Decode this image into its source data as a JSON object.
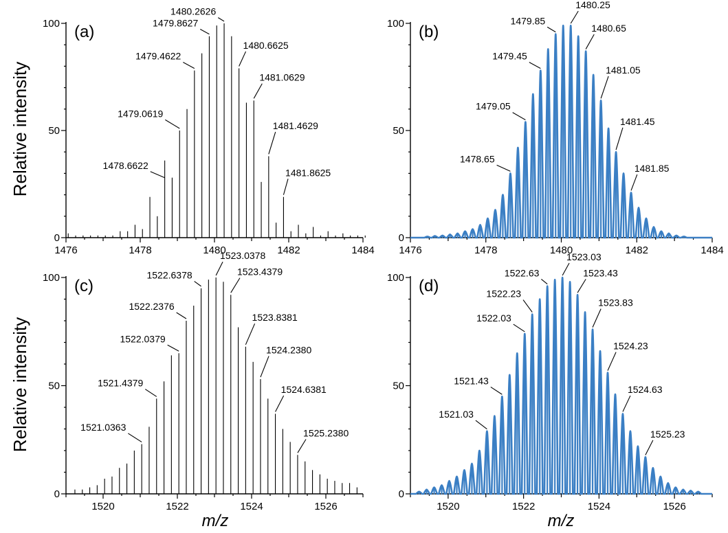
{
  "figure": {
    "ylabel": "Relative intensity",
    "xlabel": "m/z"
  },
  "chart_data": [
    {
      "id": "a",
      "type": "bar",
      "panel_label": "(a)",
      "style": "experimental",
      "color": "#000000",
      "xlim": [
        1476,
        1484
      ],
      "ylim": [
        0,
        100
      ],
      "xticks": [
        "1476",
        "1478",
        "1480",
        "1482",
        "1484"
      ],
      "yticks": [
        "0",
        "50",
        "100"
      ],
      "peaks": {
        "x": [
          1476.06,
          1476.46,
          1476.86,
          1477.26,
          1477.66,
          1478.06,
          1478.46,
          1478.86,
          1479.26,
          1479.66,
          1480.06,
          1480.46,
          1480.86,
          1481.26,
          1481.66,
          1482.06,
          1482.46,
          1482.86,
          1483.26,
          1483.66,
          1484.06,
          1476.26,
          1476.66,
          1477.06,
          1477.46,
          1477.86,
          1478.26,
          1478.66,
          1479.06,
          1479.46,
          1479.86,
          1480.26,
          1480.66,
          1481.06,
          1481.46,
          1481.86,
          1482.26,
          1482.66,
          1483.06,
          1483.46,
          1483.86
        ],
        "y": [
          2,
          1,
          1,
          1,
          3,
          4,
          10,
          28,
          60,
          86,
          99,
          94,
          63,
          26,
          7,
          3,
          2,
          1,
          1,
          1,
          1,
          1,
          1,
          1,
          3,
          6,
          19,
          36,
          50,
          78,
          94,
          100,
          79,
          64,
          38,
          19,
          6,
          5,
          3,
          2,
          1
        ]
      },
      "annotations": [
        {
          "text": "1478.6622",
          "x": 1478.66,
          "y": 27
        },
        {
          "text": "1479.0619",
          "x": 1479.06,
          "y": 50
        },
        {
          "text": "1479.4622",
          "x": 1479.46,
          "y": 78
        },
        {
          "text": "1479.8627",
          "x": 1479.86,
          "y": 94
        },
        {
          "text": "1480.2626",
          "x": 1480.26,
          "y": 100
        },
        {
          "text": "1480.6625",
          "x": 1480.66,
          "y": 79
        },
        {
          "text": "1481.0629",
          "x": 1481.06,
          "y": 64
        },
        {
          "text": "1481.4629",
          "x": 1481.46,
          "y": 38
        },
        {
          "text": "1481.8625",
          "x": 1481.86,
          "y": 19
        }
      ]
    },
    {
      "id": "b",
      "type": "line",
      "panel_label": "(b)",
      "style": "simulated",
      "color": "#3b7fc4",
      "xlim": [
        1476,
        1484
      ],
      "ylim": [
        0,
        100
      ],
      "xticks": [
        "1476",
        "1478",
        "1480",
        "1482",
        "1484"
      ],
      "yticks": [
        "0",
        "50",
        "100"
      ],
      "peaks": {
        "x": [
          1476.45,
          1476.65,
          1476.85,
          1477.05,
          1477.25,
          1477.45,
          1477.65,
          1477.85,
          1478.05,
          1478.25,
          1478.45,
          1478.65,
          1478.85,
          1479.05,
          1479.25,
          1479.45,
          1479.65,
          1479.85,
          1480.05,
          1480.25,
          1480.45,
          1480.65,
          1480.85,
          1481.05,
          1481.25,
          1481.45,
          1481.65,
          1481.85,
          1482.05,
          1482.25,
          1482.45,
          1482.65,
          1482.85,
          1483.05,
          1483.25
        ],
        "y": [
          0.5,
          0.8,
          1,
          1.5,
          2,
          3,
          4,
          6,
          9,
          13,
          20,
          30,
          42,
          54,
          67,
          78,
          88,
          95,
          99,
          99,
          94,
          87,
          76,
          64,
          51,
          40,
          30,
          21,
          14,
          9,
          5,
          3,
          2,
          1,
          0.5
        ]
      },
      "annotations": [
        {
          "text": "1478.65",
          "x": 1478.65,
          "y": 30
        },
        {
          "text": "1479.05",
          "x": 1479.05,
          "y": 54
        },
        {
          "text": "1479.45",
          "x": 1479.45,
          "y": 78
        },
        {
          "text": "1479.85",
          "x": 1479.85,
          "y": 95
        },
        {
          "text": "1480.25",
          "x": 1480.25,
          "y": 99
        },
        {
          "text": "1480.65",
          "x": 1480.65,
          "y": 87
        },
        {
          "text": "1481.05",
          "x": 1481.05,
          "y": 64
        },
        {
          "text": "1481.45",
          "x": 1481.45,
          "y": 40
        },
        {
          "text": "1481.85",
          "x": 1481.85,
          "y": 21
        }
      ]
    },
    {
      "id": "c",
      "type": "bar",
      "panel_label": "(c)",
      "style": "experimental",
      "color": "#000000",
      "xlim": [
        1519,
        1527
      ],
      "ylim": [
        0,
        100
      ],
      "xticks": [
        "1520",
        "1522",
        "1524",
        "1526"
      ],
      "yticks": [
        "0",
        "50",
        "100"
      ],
      "peaks": {
        "x": [
          1519.24,
          1519.44,
          1519.64,
          1519.84,
          1520.04,
          1520.24,
          1520.44,
          1520.64,
          1520.84,
          1521.04,
          1521.24,
          1521.44,
          1521.64,
          1521.84,
          1522.04,
          1522.24,
          1522.44,
          1522.64,
          1522.84,
          1523.04,
          1523.24,
          1523.44,
          1523.64,
          1523.84,
          1524.04,
          1524.24,
          1524.44,
          1524.64,
          1524.84,
          1525.04,
          1525.24,
          1525.44,
          1525.64,
          1525.84,
          1526.04,
          1526.24,
          1526.44,
          1526.64,
          1526.84
        ],
        "y": [
          2,
          2,
          3,
          4,
          7,
          8,
          12,
          14,
          20,
          23,
          31,
          44,
          52,
          64,
          65,
          80,
          87,
          95,
          99,
          100,
          98,
          92,
          77,
          68,
          61,
          53,
          44,
          37,
          30,
          24,
          18,
          15,
          11,
          9,
          7,
          6,
          5,
          5,
          3
        ]
      },
      "annotations": [
        {
          "text": "1521.0363",
          "x": 1521.04,
          "y": 23
        },
        {
          "text": "1521.4379",
          "x": 1521.44,
          "y": 44
        },
        {
          "text": "1522.0379",
          "x": 1522.04,
          "y": 65
        },
        {
          "text": "1522.2376",
          "x": 1522.24,
          "y": 80
        },
        {
          "text": "1522.6378",
          "x": 1522.64,
          "y": 95
        },
        {
          "text": "1523.0378",
          "x": 1523.04,
          "y": 100
        },
        {
          "text": "1523.4379",
          "x": 1523.44,
          "y": 92
        },
        {
          "text": "1523.8381",
          "x": 1523.84,
          "y": 68
        },
        {
          "text": "1524.2380",
          "x": 1524.24,
          "y": 53
        },
        {
          "text": "1524.6381",
          "x": 1524.64,
          "y": 37
        },
        {
          "text": "1525.2380",
          "x": 1525.24,
          "y": 18
        }
      ]
    },
    {
      "id": "d",
      "type": "line",
      "panel_label": "(d)",
      "style": "simulated",
      "color": "#3b7fc4",
      "xlim": [
        1519,
        1527
      ],
      "ylim": [
        0,
        100
      ],
      "xticks": [
        "1520",
        "1522",
        "1524",
        "1526"
      ],
      "yticks": [
        "0",
        "50",
        "100"
      ],
      "peaks": {
        "x": [
          1519.23,
          1519.43,
          1519.63,
          1519.83,
          1520.03,
          1520.23,
          1520.43,
          1520.63,
          1520.83,
          1521.03,
          1521.23,
          1521.43,
          1521.63,
          1521.83,
          1522.03,
          1522.23,
          1522.43,
          1522.63,
          1522.83,
          1523.03,
          1523.23,
          1523.43,
          1523.63,
          1523.83,
          1524.03,
          1524.23,
          1524.43,
          1524.63,
          1524.83,
          1525.03,
          1525.23,
          1525.43,
          1525.63,
          1525.83,
          1526.03,
          1526.23,
          1526.43,
          1526.63
        ],
        "y": [
          1,
          2,
          3,
          4,
          6,
          8,
          11,
          14,
          20,
          29,
          36,
          45,
          55,
          65,
          74,
          83,
          90,
          96,
          99,
          100,
          98,
          92,
          84,
          76,
          66,
          56,
          46,
          37,
          29,
          22,
          17,
          12,
          8,
          5,
          3,
          2,
          1.5,
          1
        ]
      },
      "annotations": [
        {
          "text": "1521.03",
          "x": 1521.03,
          "y": 29
        },
        {
          "text": "1521.43",
          "x": 1521.43,
          "y": 45
        },
        {
          "text": "1522.03",
          "x": 1522.03,
          "y": 74
        },
        {
          "text": "1522.23",
          "x": 1522.23,
          "y": 83
        },
        {
          "text": "1522.63",
          "x": 1522.63,
          "y": 96
        },
        {
          "text": "1523.03",
          "x": 1523.03,
          "y": 100
        },
        {
          "text": "1523.43",
          "x": 1523.43,
          "y": 92
        },
        {
          "text": "1523.83",
          "x": 1523.83,
          "y": 76
        },
        {
          "text": "1524.23",
          "x": 1524.23,
          "y": 56
        },
        {
          "text": "1524.63",
          "x": 1524.63,
          "y": 37
        },
        {
          "text": "1525.23",
          "x": 1525.23,
          "y": 17
        }
      ]
    }
  ]
}
